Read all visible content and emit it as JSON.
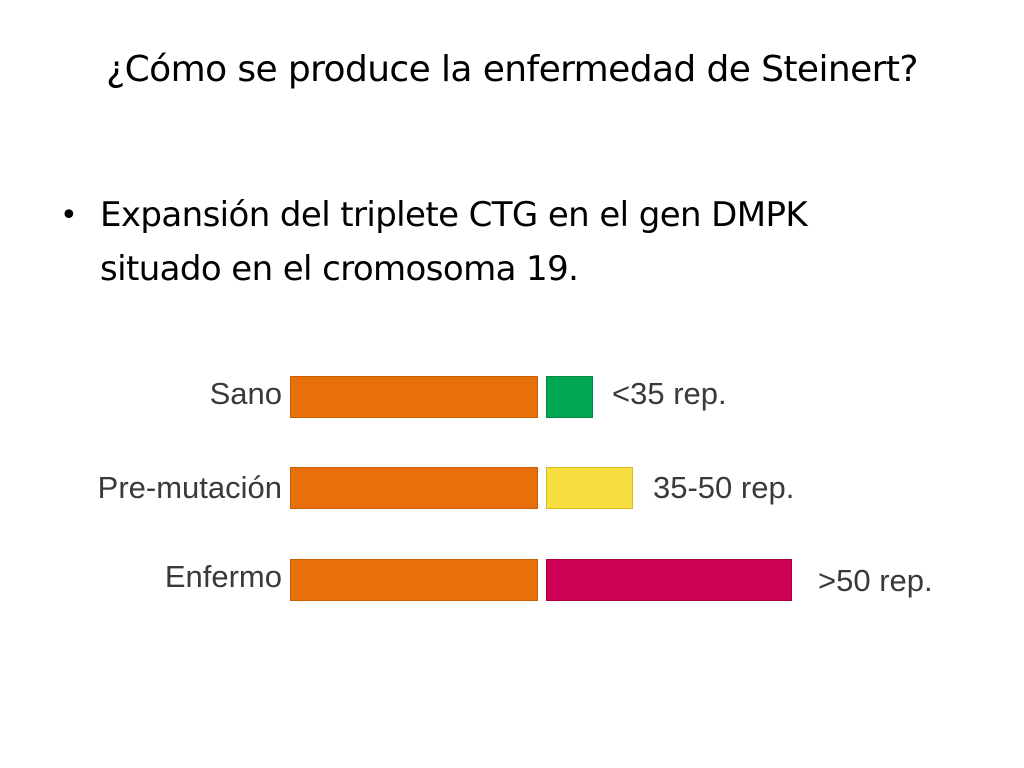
{
  "slide": {
    "title": "¿Cómo se produce la enfermedad de Steinert?",
    "bullet": {
      "marker": "•",
      "line1": "Expansión del triplete CTG en el gen DMPK",
      "line2": "situado en el cromosoma 19."
    }
  },
  "diagram": {
    "rows": [
      {
        "label": "Sano",
        "rep_label": "<35 rep.",
        "expansion_color": "#00a651"
      },
      {
        "label": "Pre-mutación",
        "rep_label": "35-50 rep.",
        "expansion_color": "#f7df42"
      },
      {
        "label": "Enfermo",
        "rep_label": ">50 rep.",
        "expansion_color": "#cc0055"
      }
    ],
    "base_color": "#e8700a"
  }
}
